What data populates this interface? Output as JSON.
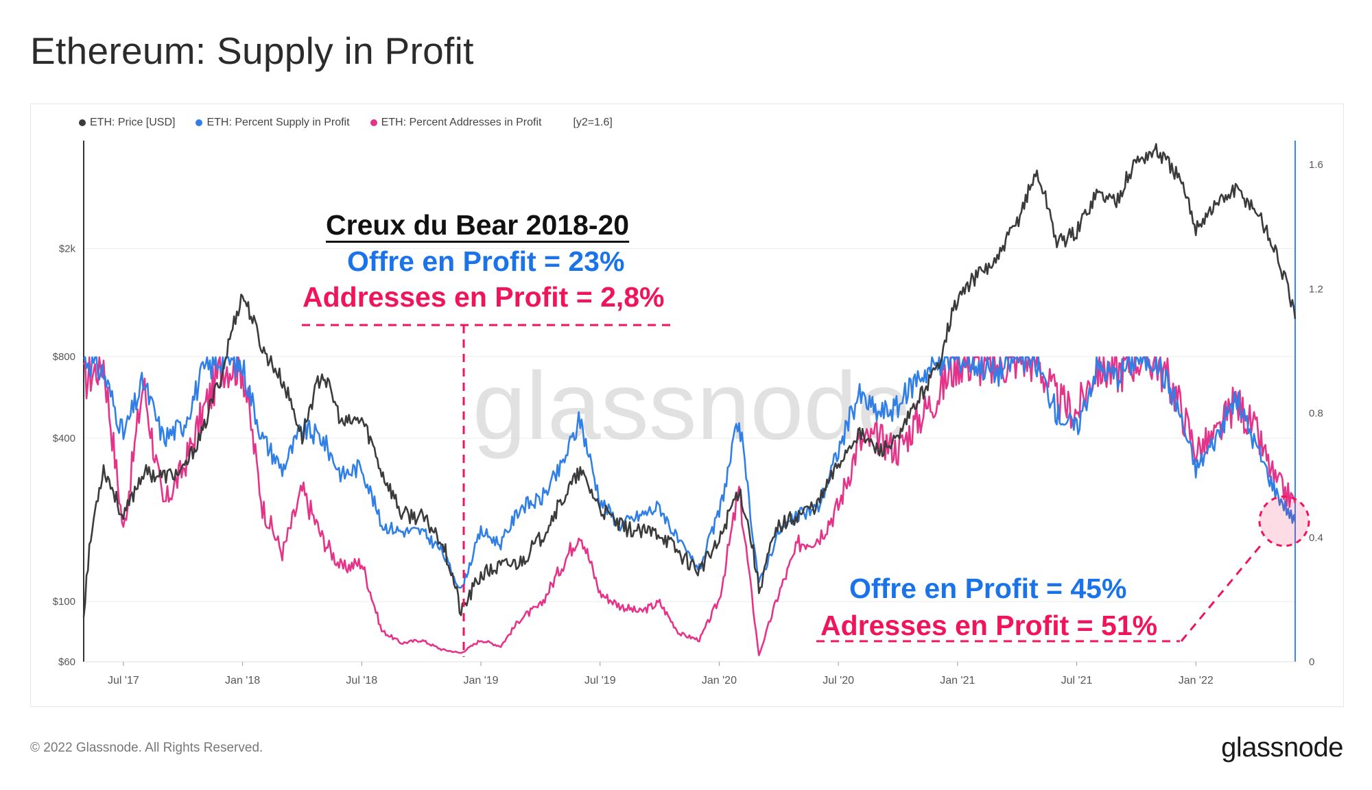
{
  "title": "Ethereum: Supply in Profit",
  "legend": {
    "price": "ETH: Price [USD]",
    "supply": "ETH: Percent Supply in Profit",
    "addresses": "ETH: Percent Addresses in Profit",
    "note": "[y2=1.6]"
  },
  "colors": {
    "price": "#3b3b3b",
    "supply": "#2f7fe6",
    "addresses": "#e6338a",
    "axis_right": "#3b82f6",
    "annot_blue": "#1a73e8",
    "annot_pink": "#f0145a"
  },
  "watermark": "glassnode",
  "annotations": {
    "bear_title": "Creux du Bear 2018-20",
    "bear_supply": "Offre en Profit = 23%",
    "bear_addresses": "Addresses en Profit = 2,8%",
    "now_supply": "Offre en Profit = 45%",
    "now_addresses": "Adresses en Profit = 51%"
  },
  "footer": {
    "copyright": "© 2022 Glassnode. All Rights Reserved.",
    "logo": "glassnode"
  },
  "chart_data": {
    "type": "line",
    "title": "Ethereum: Supply in Profit",
    "x_range": [
      "2017-05",
      "2022-06"
    ],
    "x_ticks": [
      "Jul '17",
      "Jan '18",
      "Jul '18",
      "Jan '19",
      "Jul '19",
      "Jan '20",
      "Jul '20",
      "Jan '21",
      "Jul '21",
      "Jan '22"
    ],
    "y_left": {
      "scale": "log",
      "range": [
        60,
        5000
      ],
      "ticks": [
        {
          "v": 60,
          "label": "$60"
        },
        {
          "v": 100,
          "label": "$100"
        },
        {
          "v": 400,
          "label": "$400"
        },
        {
          "v": 800,
          "label": "$800"
        },
        {
          "v": 2000,
          "label": "$2k"
        }
      ]
    },
    "y_right": {
      "scale": "linear",
      "range": [
        0,
        1.6
      ],
      "ticks": [
        {
          "v": 0,
          "label": "0"
        },
        {
          "v": 0.4,
          "label": "0.4"
        },
        {
          "v": 0.8,
          "label": "0.8"
        },
        {
          "v": 1.2,
          "label": "1.2"
        },
        {
          "v": 1.6,
          "label": "1.6"
        }
      ]
    },
    "series": [
      {
        "name": "ETH: Price [USD]",
        "axis": "left",
        "points": [
          [
            "2017-05",
            90
          ],
          [
            "2017-06",
            310
          ],
          [
            "2017-07",
            200
          ],
          [
            "2017-08",
            300
          ],
          [
            "2017-09",
            290
          ],
          [
            "2017-10",
            300
          ],
          [
            "2017-11",
            420
          ],
          [
            "2017-12",
            700
          ],
          [
            "2018-01",
            1350
          ],
          [
            "2018-02",
            850
          ],
          [
            "2018-03",
            650
          ],
          [
            "2018-04",
            400
          ],
          [
            "2018-05",
            700
          ],
          [
            "2018-06",
            450
          ],
          [
            "2018-07",
            470
          ],
          [
            "2018-08",
            300
          ],
          [
            "2018-09",
            210
          ],
          [
            "2018-10",
            205
          ],
          [
            "2018-11",
            170
          ],
          [
            "2018-12",
            90
          ],
          [
            "2019-01",
            125
          ],
          [
            "2019-02",
            135
          ],
          [
            "2019-03",
            140
          ],
          [
            "2019-04",
            170
          ],
          [
            "2019-05",
            230
          ],
          [
            "2019-06",
            300
          ],
          [
            "2019-07",
            220
          ],
          [
            "2019-08",
            190
          ],
          [
            "2019-09",
            180
          ],
          [
            "2019-10",
            180
          ],
          [
            "2019-11",
            150
          ],
          [
            "2019-12",
            130
          ],
          [
            "2020-01",
            165
          ],
          [
            "2020-02",
            260
          ],
          [
            "2020-03",
            110
          ],
          [
            "2020-04",
            190
          ],
          [
            "2020-05",
            210
          ],
          [
            "2020-06",
            230
          ],
          [
            "2020-07",
            320
          ],
          [
            "2020-08",
            420
          ],
          [
            "2020-09",
            360
          ],
          [
            "2020-10",
            390
          ],
          [
            "2020-11",
            550
          ],
          [
            "2020-12",
            730
          ],
          [
            "2021-01",
            1300
          ],
          [
            "2021-02",
            1600
          ],
          [
            "2021-03",
            1800
          ],
          [
            "2021-04",
            2500
          ],
          [
            "2021-05",
            3800
          ],
          [
            "2021-06",
            2100
          ],
          [
            "2021-07",
            2300
          ],
          [
            "2021-08",
            3200
          ],
          [
            "2021-09",
            3000
          ],
          [
            "2021-10",
            4200
          ],
          [
            "2021-11",
            4600
          ],
          [
            "2021-12",
            3800
          ],
          [
            "2022-01",
            2400
          ],
          [
            "2022-02",
            2900
          ],
          [
            "2022-03",
            3300
          ],
          [
            "2022-04",
            2800
          ],
          [
            "2022-05",
            1950
          ],
          [
            "2022-06",
            1100
          ]
        ]
      },
      {
        "name": "ETH: Percent Supply in Profit",
        "axis": "right",
        "points": [
          [
            "2017-05",
            0.98
          ],
          [
            "2017-06",
            0.93
          ],
          [
            "2017-07",
            0.73
          ],
          [
            "2017-08",
            0.9
          ],
          [
            "2017-09",
            0.72
          ],
          [
            "2017-10",
            0.76
          ],
          [
            "2017-11",
            0.93
          ],
          [
            "2017-12",
            0.98
          ],
          [
            "2018-01",
            0.95
          ],
          [
            "2018-02",
            0.72
          ],
          [
            "2018-03",
            0.62
          ],
          [
            "2018-04",
            0.75
          ],
          [
            "2018-05",
            0.72
          ],
          [
            "2018-06",
            0.6
          ],
          [
            "2018-07",
            0.63
          ],
          [
            "2018-08",
            0.44
          ],
          [
            "2018-09",
            0.42
          ],
          [
            "2018-10",
            0.42
          ],
          [
            "2018-11",
            0.36
          ],
          [
            "2018-12",
            0.23
          ],
          [
            "2019-01",
            0.42
          ],
          [
            "2019-02",
            0.38
          ],
          [
            "2019-03",
            0.5
          ],
          [
            "2019-04",
            0.52
          ],
          [
            "2019-05",
            0.62
          ],
          [
            "2019-06",
            0.78
          ],
          [
            "2019-07",
            0.52
          ],
          [
            "2019-08",
            0.44
          ],
          [
            "2019-09",
            0.47
          ],
          [
            "2019-10",
            0.5
          ],
          [
            "2019-11",
            0.38
          ],
          [
            "2019-12",
            0.3
          ],
          [
            "2020-01",
            0.48
          ],
          [
            "2020-02",
            0.78
          ],
          [
            "2020-03",
            0.25
          ],
          [
            "2020-04",
            0.42
          ],
          [
            "2020-05",
            0.47
          ],
          [
            "2020-06",
            0.5
          ],
          [
            "2020-07",
            0.68
          ],
          [
            "2020-08",
            0.86
          ],
          [
            "2020-09",
            0.8
          ],
          [
            "2020-10",
            0.82
          ],
          [
            "2020-11",
            0.92
          ],
          [
            "2020-12",
            0.96
          ],
          [
            "2021-01",
            0.98
          ],
          [
            "2021-02",
            0.96
          ],
          [
            "2021-03",
            0.93
          ],
          [
            "2021-04",
            0.98
          ],
          [
            "2021-05",
            0.96
          ],
          [
            "2021-06",
            0.8
          ],
          [
            "2021-07",
            0.75
          ],
          [
            "2021-08",
            0.95
          ],
          [
            "2021-09",
            0.92
          ],
          [
            "2021-10",
            0.98
          ],
          [
            "2021-11",
            0.97
          ],
          [
            "2021-12",
            0.84
          ],
          [
            "2022-01",
            0.62
          ],
          [
            "2022-02",
            0.72
          ],
          [
            "2022-03",
            0.85
          ],
          [
            "2022-04",
            0.7
          ],
          [
            "2022-05",
            0.55
          ],
          [
            "2022-06",
            0.45
          ]
        ]
      },
      {
        "name": "ETH: Percent Addresses in Profit",
        "axis": "right",
        "points": [
          [
            "2017-05",
            0.9
          ],
          [
            "2017-06",
            0.97
          ],
          [
            "2017-07",
            0.42
          ],
          [
            "2017-08",
            0.9
          ],
          [
            "2017-09",
            0.5
          ],
          [
            "2017-10",
            0.62
          ],
          [
            "2017-11",
            0.8
          ],
          [
            "2017-12",
            0.96
          ],
          [
            "2018-01",
            0.95
          ],
          [
            "2018-02",
            0.5
          ],
          [
            "2018-03",
            0.35
          ],
          [
            "2018-04",
            0.55
          ],
          [
            "2018-05",
            0.4
          ],
          [
            "2018-06",
            0.3
          ],
          [
            "2018-07",
            0.32
          ],
          [
            "2018-08",
            0.1
          ],
          [
            "2018-09",
            0.06
          ],
          [
            "2018-10",
            0.07
          ],
          [
            "2018-11",
            0.04
          ],
          [
            "2018-12",
            0.028
          ],
          [
            "2019-01",
            0.07
          ],
          [
            "2019-02",
            0.05
          ],
          [
            "2019-03",
            0.14
          ],
          [
            "2019-04",
            0.18
          ],
          [
            "2019-05",
            0.3
          ],
          [
            "2019-06",
            0.42
          ],
          [
            "2019-07",
            0.22
          ],
          [
            "2019-08",
            0.18
          ],
          [
            "2019-09",
            0.16
          ],
          [
            "2019-10",
            0.19
          ],
          [
            "2019-11",
            0.09
          ],
          [
            "2019-12",
            0.07
          ],
          [
            "2020-01",
            0.2
          ],
          [
            "2020-02",
            0.55
          ],
          [
            "2020-03",
            0.02
          ],
          [
            "2020-04",
            0.22
          ],
          [
            "2020-05",
            0.38
          ],
          [
            "2020-06",
            0.4
          ],
          [
            "2020-07",
            0.5
          ],
          [
            "2020-08",
            0.7
          ],
          [
            "2020-09",
            0.72
          ],
          [
            "2020-10",
            0.68
          ],
          [
            "2020-11",
            0.78
          ],
          [
            "2020-12",
            0.86
          ],
          [
            "2021-01",
            0.97
          ],
          [
            "2021-02",
            0.96
          ],
          [
            "2021-03",
            0.95
          ],
          [
            "2021-04",
            0.98
          ],
          [
            "2021-05",
            0.97
          ],
          [
            "2021-06",
            0.84
          ],
          [
            "2021-07",
            0.8
          ],
          [
            "2021-08",
            0.95
          ],
          [
            "2021-09",
            0.93
          ],
          [
            "2021-10",
            0.98
          ],
          [
            "2021-11",
            0.97
          ],
          [
            "2021-12",
            0.86
          ],
          [
            "2022-01",
            0.68
          ],
          [
            "2022-02",
            0.72
          ],
          [
            "2022-03",
            0.84
          ],
          [
            "2022-04",
            0.74
          ],
          [
            "2022-05",
            0.58
          ],
          [
            "2022-06",
            0.51
          ]
        ]
      }
    ]
  }
}
